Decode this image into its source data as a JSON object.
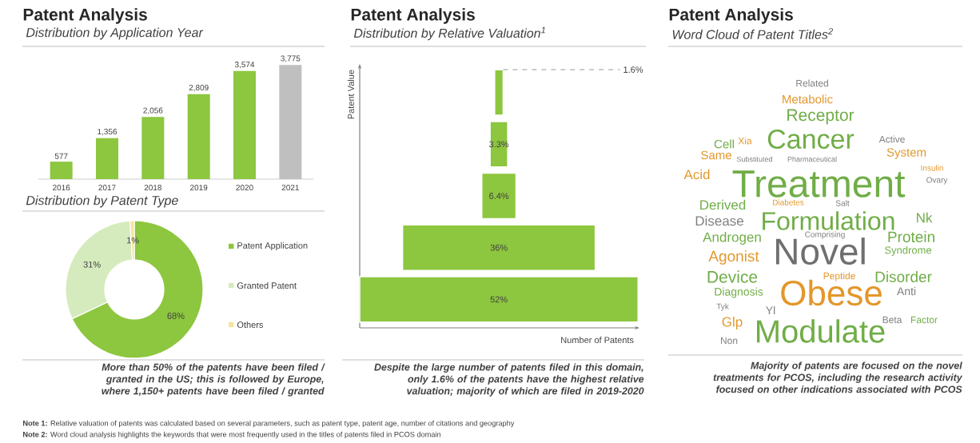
{
  "chart_data": [
    {
      "type": "bar",
      "title": "Patent Analysis",
      "subtitle": "Distribution by Application Year",
      "categories": [
        "2016",
        "2017",
        "2018",
        "2019",
        "2020",
        "2021"
      ],
      "values": [
        577,
        1356,
        2056,
        2809,
        3574,
        3775
      ],
      "value_labels": [
        "577",
        "1,356",
        "2,056",
        "2,809",
        "3,574",
        "3,775"
      ],
      "colors": [
        "#8dc63f",
        "#8dc63f",
        "#8dc63f",
        "#8dc63f",
        "#8dc63f",
        "#bfbfbf"
      ]
    },
    {
      "type": "donut",
      "subtitle": "Distribution by Patent Type",
      "categories": [
        "Patent Application",
        "Granted Patent",
        "Others"
      ],
      "values": [
        68,
        31,
        1
      ],
      "value_labels": [
        "68%",
        "31%",
        "1%"
      ],
      "colors": [
        "#8dc63f",
        "#d5ebbd",
        "#f5e49c"
      ],
      "legend": "right",
      "annotations": [
        "More than 50% of the patents have been filed / granted in the US; this is followed by Europe, where 1,150+ patents have been filed / granted"
      ]
    },
    {
      "type": "other",
      "title": "Patent Analysis",
      "subtitle": "Distribution by Relative Valuation$^{1}$",
      "xlabel": "Number of Patents",
      "ylabel": "Patent Value",
      "categories": [
        null,
        null,
        null,
        null,
        null
      ],
      "values": [
        1.6,
        3.3,
        6.4,
        36,
        52
      ],
      "value_labels": [
        "1.6%",
        "3.3%",
        "6.4%",
        "36%",
        "52%"
      ],
      "color": "#8dc63f",
      "annotations": [
        "Despite the large number of patents filed in this domain, only 1.6% of the patents have the highest relative valuation; majority of which are filed in 2019-2020",
        "**Note 1:** Relative valuation of patents was calculated based on several parameters, such as patent type, patent age, number of citations and geography"
      ]
    },
    {
      "type": "other",
      "title": "Patent Analysis",
      "subtitle": "Word Cloud of Patent Titles$^{2}$",
      "categories": [
        "Related",
        "Metabolic",
        "Receptor",
        "Cancer",
        "Cell",
        "Xia",
        "Active",
        "Same",
        "System",
        "Substituted",
        "Pharmaceutical",
        "Acid",
        "Treatment",
        "Derived",
        "Diabetes",
        "Salt",
        "Ovary",
        "Insulin",
        "Disease",
        "Formulation",
        "Nk",
        "Androgen",
        "Comprising",
        "Protein",
        "Novel",
        "Syndrome",
        "Agonist",
        "Device",
        "Peptide",
        "Disorder",
        "Obese",
        "Diagnosis",
        "Yl",
        "Anti",
        "Tyk",
        "Glp",
        "Beta",
        "Factor",
        "Non",
        "Modulate"
      ],
      "colors": [
        "#7f7f7f",
        "#e3972b",
        "#70ad47",
        "#70ad47",
        "#70ad47",
        "#e3972b",
        "#7f7f7f",
        "#e3972b",
        "#e3972b",
        "#7f7f7f",
        "#7f7f7f",
        "#e3972b",
        "#70ad47",
        "#70ad47",
        "#e3972b",
        "#7f7f7f",
        "#7f7f7f",
        "#e3972b",
        "#7f7f7f",
        "#70ad47",
        "#70ad47",
        "#70ad47",
        "#7f7f7f",
        "#70ad47",
        "#6f6f6f",
        "#70ad47",
        "#e3972b",
        "#70ad47",
        "#e3972b",
        "#70ad47",
        "#e3972b",
        "#70ad47",
        "#7f7f7f",
        "#7f7f7f",
        "#7f7f7f",
        "#e3972b",
        "#7f7f7f",
        "#70ad47",
        "#7f7f7f",
        "#70ad47"
      ],
      "annotations": [
        "Majority of patents are focused on the novel treatments for PCOS, including the research activity focused on other indications associated with PCOS",
        "**Note 2:** Word cloud analysis highlights the keywords that were most frequently used in the titles of patents filed in PCOS domain"
      ]
    }
  ]
}
